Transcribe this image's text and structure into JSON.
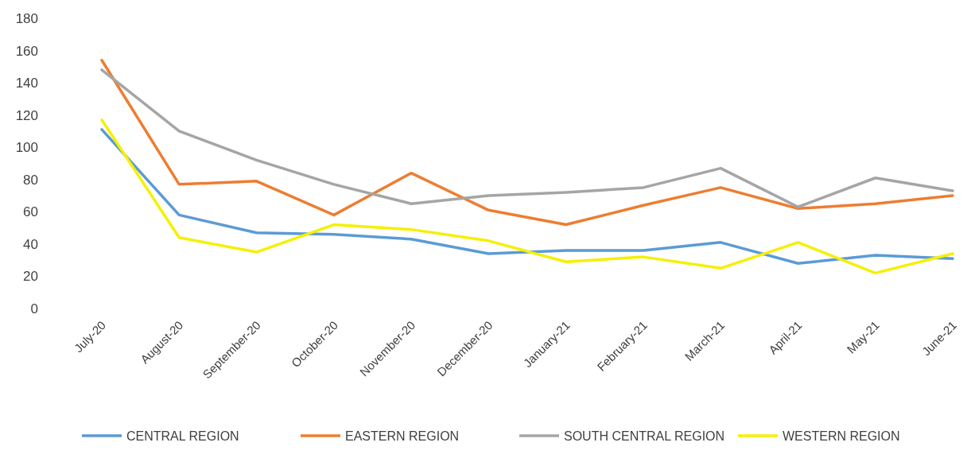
{
  "chart_data": {
    "type": "line",
    "categories": [
      "July-20",
      "August-20",
      "September-20",
      "October-20",
      "November-20",
      "December-20",
      "January-21",
      "February-21",
      "March-21",
      "April-21",
      "May-21",
      "June-21"
    ],
    "series": [
      {
        "name": "CENTRAL REGION",
        "color": "#5b9bd5",
        "values": [
          111,
          58,
          47,
          46,
          43,
          34,
          36,
          36,
          41,
          28,
          33,
          31
        ]
      },
      {
        "name": "EASTERN REGION",
        "color": "#ed7d31",
        "values": [
          154,
          77,
          79,
          58,
          84,
          61,
          52,
          64,
          75,
          62,
          65,
          70
        ]
      },
      {
        "name": "SOUTH CENTRAL REGION",
        "color": "#a5a5a5",
        "values": [
          148,
          110,
          92,
          77,
          65,
          70,
          72,
          75,
          87,
          63,
          81,
          73
        ]
      },
      {
        "name": "WESTERN REGION",
        "color": "#f5f000",
        "values": [
          117,
          44,
          35,
          52,
          49,
          42,
          29,
          32,
          25,
          41,
          22,
          34
        ]
      }
    ],
    "ylim": [
      0,
      180
    ],
    "yticks": [
      0,
      20,
      40,
      60,
      80,
      100,
      120,
      140,
      160,
      180
    ],
    "grid": false,
    "legend": "bottom",
    "marker": "none",
    "line_style": "solid"
  }
}
